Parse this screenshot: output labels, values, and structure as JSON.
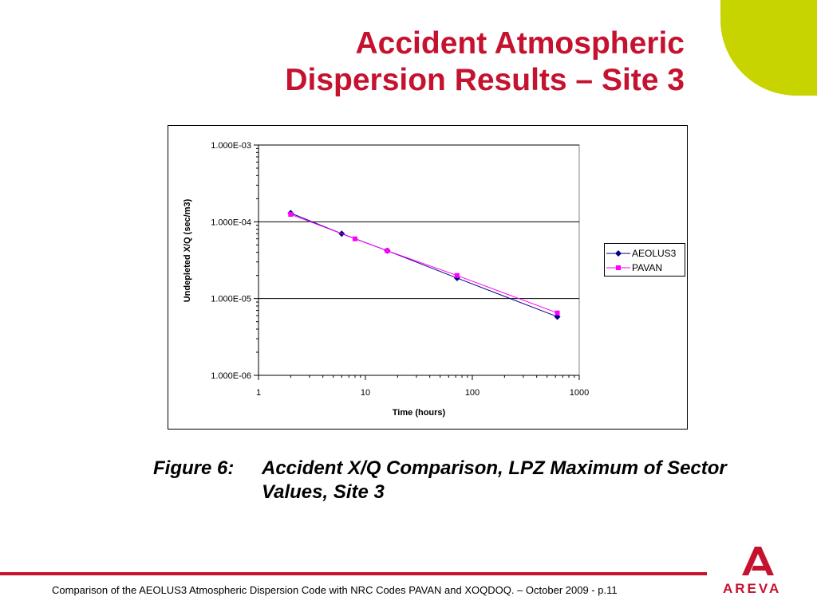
{
  "slide": {
    "title_line1": "Accident Atmospheric",
    "title_line2": "Dispersion Results – Site 3",
    "caption_label": "Figure 6:",
    "caption_text": "Accident X/Q Comparison, LPZ Maximum of Sector Values, Site 3",
    "footer": "Comparison of the AEOLUS3 Atmospheric Dispersion Code with NRC Codes PAVAN and XOQDOQ. – October 2009 - p.11",
    "logo_text": "AREVA",
    "accent_color": "#c4122f",
    "corner_color": "#c8d400"
  },
  "chart_data": {
    "type": "line",
    "xlabel": "Time (hours)",
    "ylabel": "Undepleted X/Q (sec/m3)",
    "xscale": "log",
    "yscale": "log",
    "xlim": [
      1,
      1000
    ],
    "ylim": [
      1e-06,
      0.001
    ],
    "x_ticks": [
      1,
      10,
      100,
      1000
    ],
    "x_tick_labels": [
      "1",
      "10",
      "100",
      "1000"
    ],
    "y_ticks": [
      1e-06,
      1e-05,
      0.0001,
      0.001
    ],
    "y_tick_labels": [
      "1.000E-06",
      "1.000E-05",
      "1.000E-04",
      "1.000E-03"
    ],
    "grid": "horizontal major",
    "legend_position": "right",
    "series": [
      {
        "name": "AEOLUS3",
        "color": "#000080",
        "marker": "diamond",
        "points": [
          [
            2,
            0.00013
          ],
          [
            6,
            7e-05
          ],
          [
            16,
            4.2e-05
          ],
          [
            72,
            1.85e-05
          ],
          [
            624,
            5.8e-06
          ]
        ]
      },
      {
        "name": "PAVAN",
        "color": "#ff00ff",
        "marker": "square",
        "points": [
          [
            2,
            0.000125
          ],
          [
            8,
            6e-05
          ],
          [
            16,
            4.2e-05
          ],
          [
            72,
            2e-05
          ],
          [
            624,
            6.5e-06
          ]
        ]
      }
    ]
  }
}
